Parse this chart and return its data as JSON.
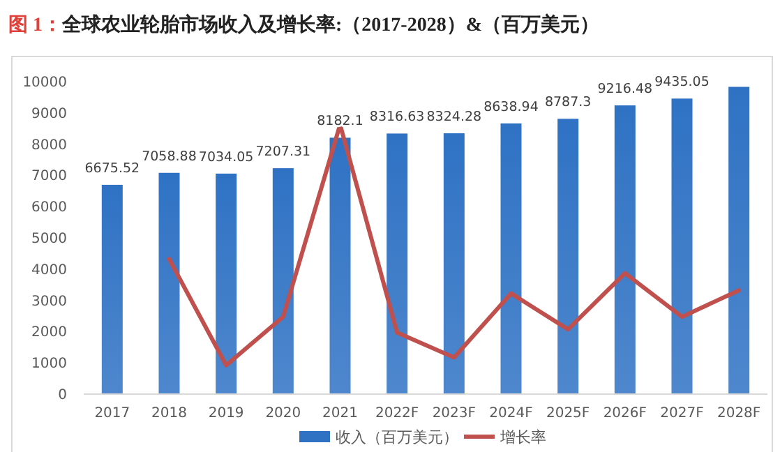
{
  "chart_data": {
    "type": "bar",
    "title": "全球农业轮胎市场收入及增长率:（2017-2028）&（百万美元）",
    "annotations": [
      "图 1："
    ],
    "categories": [
      "2017",
      "2018",
      "2019",
      "2020",
      "2021",
      "2022F",
      "2023F",
      "2024F",
      "2025F",
      "2026F",
      "2027F",
      "2028F"
    ],
    "series": [
      {
        "name": "收入（百万美元）",
        "color": "#2f72c4",
        "values": [
          6675.52,
          7058.88,
          7034.05,
          7207.31,
          8182.1,
          8316.63,
          8324.28,
          8638.94,
          8787.3,
          9216.48,
          9435.05,
          9810
        ],
        "value_labels": [
          "6675.52",
          "7058.88",
          "7034.05",
          "7207.31",
          "8182.1",
          "8316.63",
          "8324.28",
          "8638.94",
          "8787.3",
          "9216.48",
          "9435.05",
          null
        ]
      },
      {
        "name": "增长率",
        "type": "line",
        "color": "#c0504d",
        "values": [
          null,
          4300,
          900,
          2450,
          8600,
          1950,
          1150,
          3200,
          2050,
          3850,
          2450,
          3300
        ]
      }
    ],
    "ylim": [
      0,
      10000
    ],
    "yticks": [
      0,
      1000,
      2000,
      3000,
      4000,
      5000,
      6000,
      7000,
      8000,
      9000,
      10000
    ],
    "grid": false,
    "legend": "bottom",
    "marker": "none",
    "line_style": "solid"
  }
}
